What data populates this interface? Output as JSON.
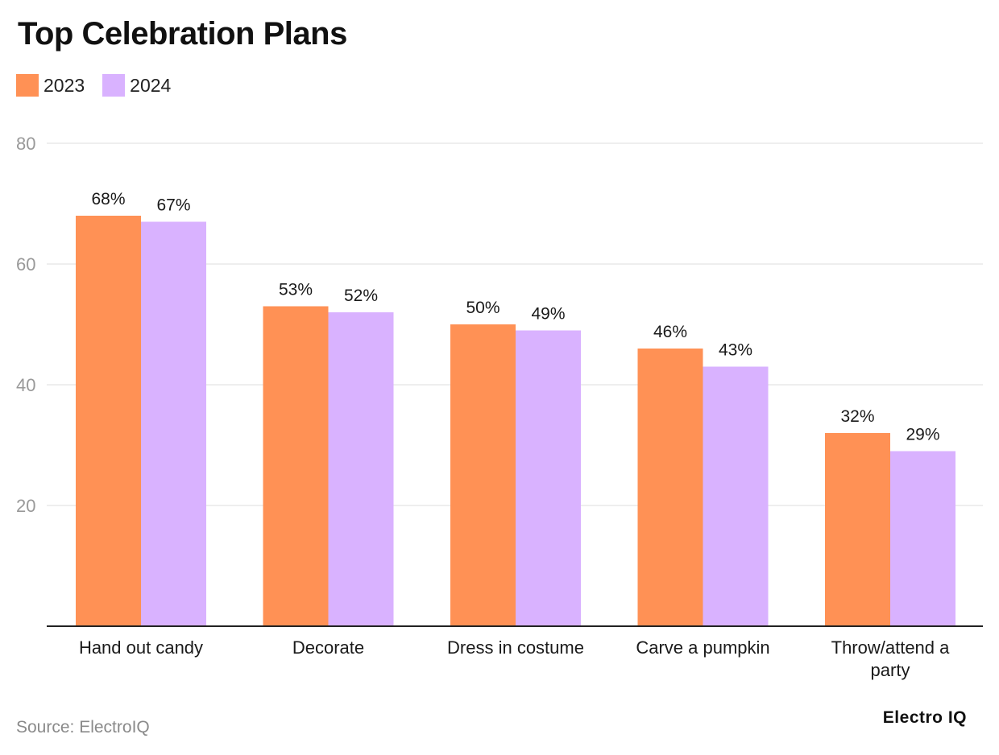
{
  "chart_data": {
    "type": "bar",
    "title": "Top Celebration Plans",
    "categories": [
      "Hand out candy",
      "Decorate",
      "Dress in costume",
      "Carve a pumpkin",
      "Throw/attend a party"
    ],
    "category_lines": [
      [
        "Hand out candy"
      ],
      [
        "Decorate"
      ],
      [
        "Dress in costume"
      ],
      [
        "Carve a pumpkin"
      ],
      [
        "Throw/attend a",
        "party"
      ]
    ],
    "series": [
      {
        "name": "2023",
        "color": "#FF9155",
        "values": [
          68,
          53,
          50,
          46,
          32
        ],
        "labels": [
          "68%",
          "53%",
          "50%",
          "46%",
          "32%"
        ]
      },
      {
        "name": "2024",
        "color": "#D9B2FF",
        "values": [
          67,
          52,
          49,
          43,
          29
        ],
        "labels": [
          "67%",
          "52%",
          "49%",
          "43%",
          "29%"
        ]
      }
    ],
    "ylim": [
      0,
      80
    ],
    "yticks": [
      20,
      40,
      60,
      80
    ],
    "ytick_labels": [
      "20",
      "40",
      "60",
      "80"
    ],
    "grid": true,
    "legend_position": "top-left",
    "xlabel": "",
    "ylabel": ""
  },
  "source": "Source: ElectroIQ",
  "brand": "Electro IQ"
}
